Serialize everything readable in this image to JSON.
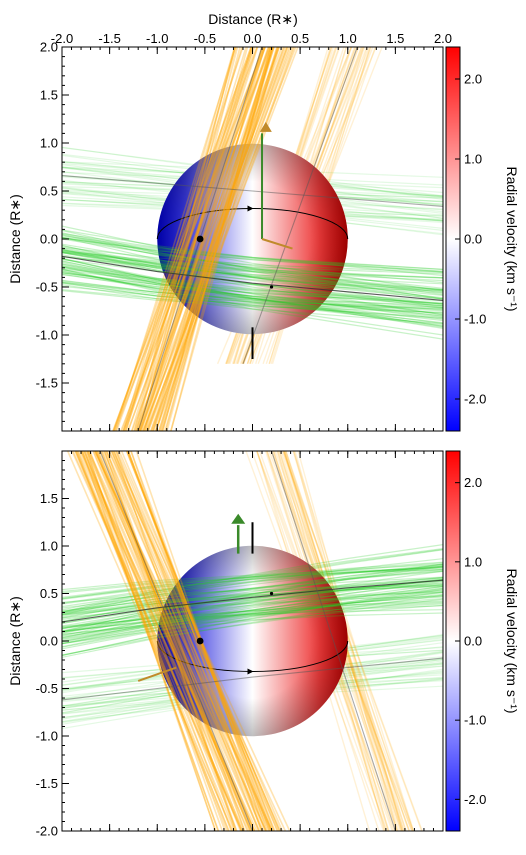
{
  "figure": {
    "top_axis_title": "Distance (R∗)",
    "panel_ylabel": "Distance (R∗)",
    "colorbar_label": "Radial velocity (km s⁻¹)"
  },
  "colors": {
    "orange_band": "#ffa500",
    "green_band": "#22cc22",
    "track_line": "#555555",
    "arrow_orange": "#c08a2a",
    "arrow_green": "#3a8a2a",
    "colorbar_low": "#0000ff",
    "colorbar_mid": "#ffffff",
    "colorbar_high": "#ff0000"
  },
  "chart_data": [
    {
      "type": "scatter",
      "panel": "top",
      "xlabel": "Distance (R∗)",
      "ylabel": "Distance (R∗)",
      "xlim": [
        -2.0,
        2.0
      ],
      "ylim": [
        -2.0,
        2.0
      ],
      "xticks": [
        "-2.0",
        "-1.5",
        "-1.0",
        "-0.5",
        "0.0",
        "0.5",
        "1.0",
        "1.5",
        "2.0"
      ],
      "yticks": [
        "2.0",
        "1.5",
        "1.0",
        "0.5",
        "0.0",
        "-0.5",
        "-1.0",
        "-1.5"
      ],
      "colorbar": {
        "label": "Radial velocity (km s⁻¹)",
        "range": [
          -2.4,
          2.4
        ],
        "ticks": [
          "2.0",
          "1.0",
          "0.0",
          "-1.0",
          "-2.0"
        ]
      },
      "star": {
        "center": [
          0.0,
          0.0
        ],
        "radius": 1.0
      },
      "orbit_tracks": [
        {
          "color": "green",
          "points": [
            [
              -2.0,
              -0.18
            ],
            [
              -1.0,
              -0.34
            ],
            [
              0.0,
              -0.46
            ],
            [
              1.0,
              -0.55
            ],
            [
              2.0,
              -0.64
            ]
          ]
        },
        {
          "color": "green",
          "points": [
            [
              -2.0,
              0.66
            ],
            [
              -1.0,
              0.58
            ],
            [
              0.0,
              0.5
            ],
            [
              1.0,
              0.42
            ],
            [
              2.0,
              0.34
            ]
          ]
        },
        {
          "color": "orange",
          "points": [
            [
              -1.2,
              -2.0
            ],
            [
              0.1,
              2.0
            ]
          ]
        },
        {
          "color": "orange",
          "points": [
            [
              -0.1,
              -1.3
            ],
            [
              1.1,
              2.0
            ]
          ]
        }
      ],
      "points": [
        [
          -0.55,
          0.0
        ],
        [
          0.2,
          -0.5
        ]
      ],
      "projected_spin_axis": {
        "from": [
          0.0,
          -0.92
        ],
        "to": [
          0.0,
          -1.25
        ]
      }
    },
    {
      "type": "scatter",
      "panel": "bottom",
      "xlabel": "",
      "ylabel": "Distance (R∗)",
      "xlim": [
        -2.0,
        2.0
      ],
      "ylim": [
        -2.0,
        2.0
      ],
      "xticks": [],
      "yticks": [
        "1.5",
        "1.0",
        "0.5",
        "0.0",
        "-0.5",
        "-1.0",
        "-1.5",
        "-2.0"
      ],
      "colorbar": {
        "label": "Radial velocity (km s⁻¹)",
        "range": [
          -2.4,
          2.4
        ],
        "ticks": [
          "2.0",
          "1.0",
          "0.0",
          "-1.0",
          "-2.0"
        ]
      },
      "star": {
        "center": [
          0.0,
          0.0
        ],
        "radius": 1.0
      },
      "orbit_tracks": [
        {
          "color": "green",
          "points": [
            [
              -2.0,
              0.2
            ],
            [
              -1.0,
              0.35
            ],
            [
              0.0,
              0.46
            ],
            [
              1.0,
              0.56
            ],
            [
              2.0,
              0.64
            ]
          ]
        },
        {
          "color": "green",
          "points": [
            [
              -2.0,
              -0.62
            ],
            [
              -1.0,
              -0.5
            ],
            [
              0.0,
              -0.38
            ],
            [
              1.0,
              -0.28
            ],
            [
              2.0,
              -0.18
            ]
          ]
        },
        {
          "color": "orange",
          "points": [
            [
              -1.6,
              2.0
            ],
            [
              0.0,
              -2.0
            ]
          ]
        },
        {
          "color": "orange",
          "points": [
            [
              0.2,
              2.0
            ],
            [
              1.5,
              -2.0
            ]
          ]
        }
      ],
      "points": [
        [
          -0.55,
          0.0
        ],
        [
          0.2,
          0.5
        ]
      ],
      "projected_spin_axis": {
        "from": [
          0.0,
          0.92
        ],
        "to": [
          0.0,
          1.25
        ]
      }
    }
  ]
}
